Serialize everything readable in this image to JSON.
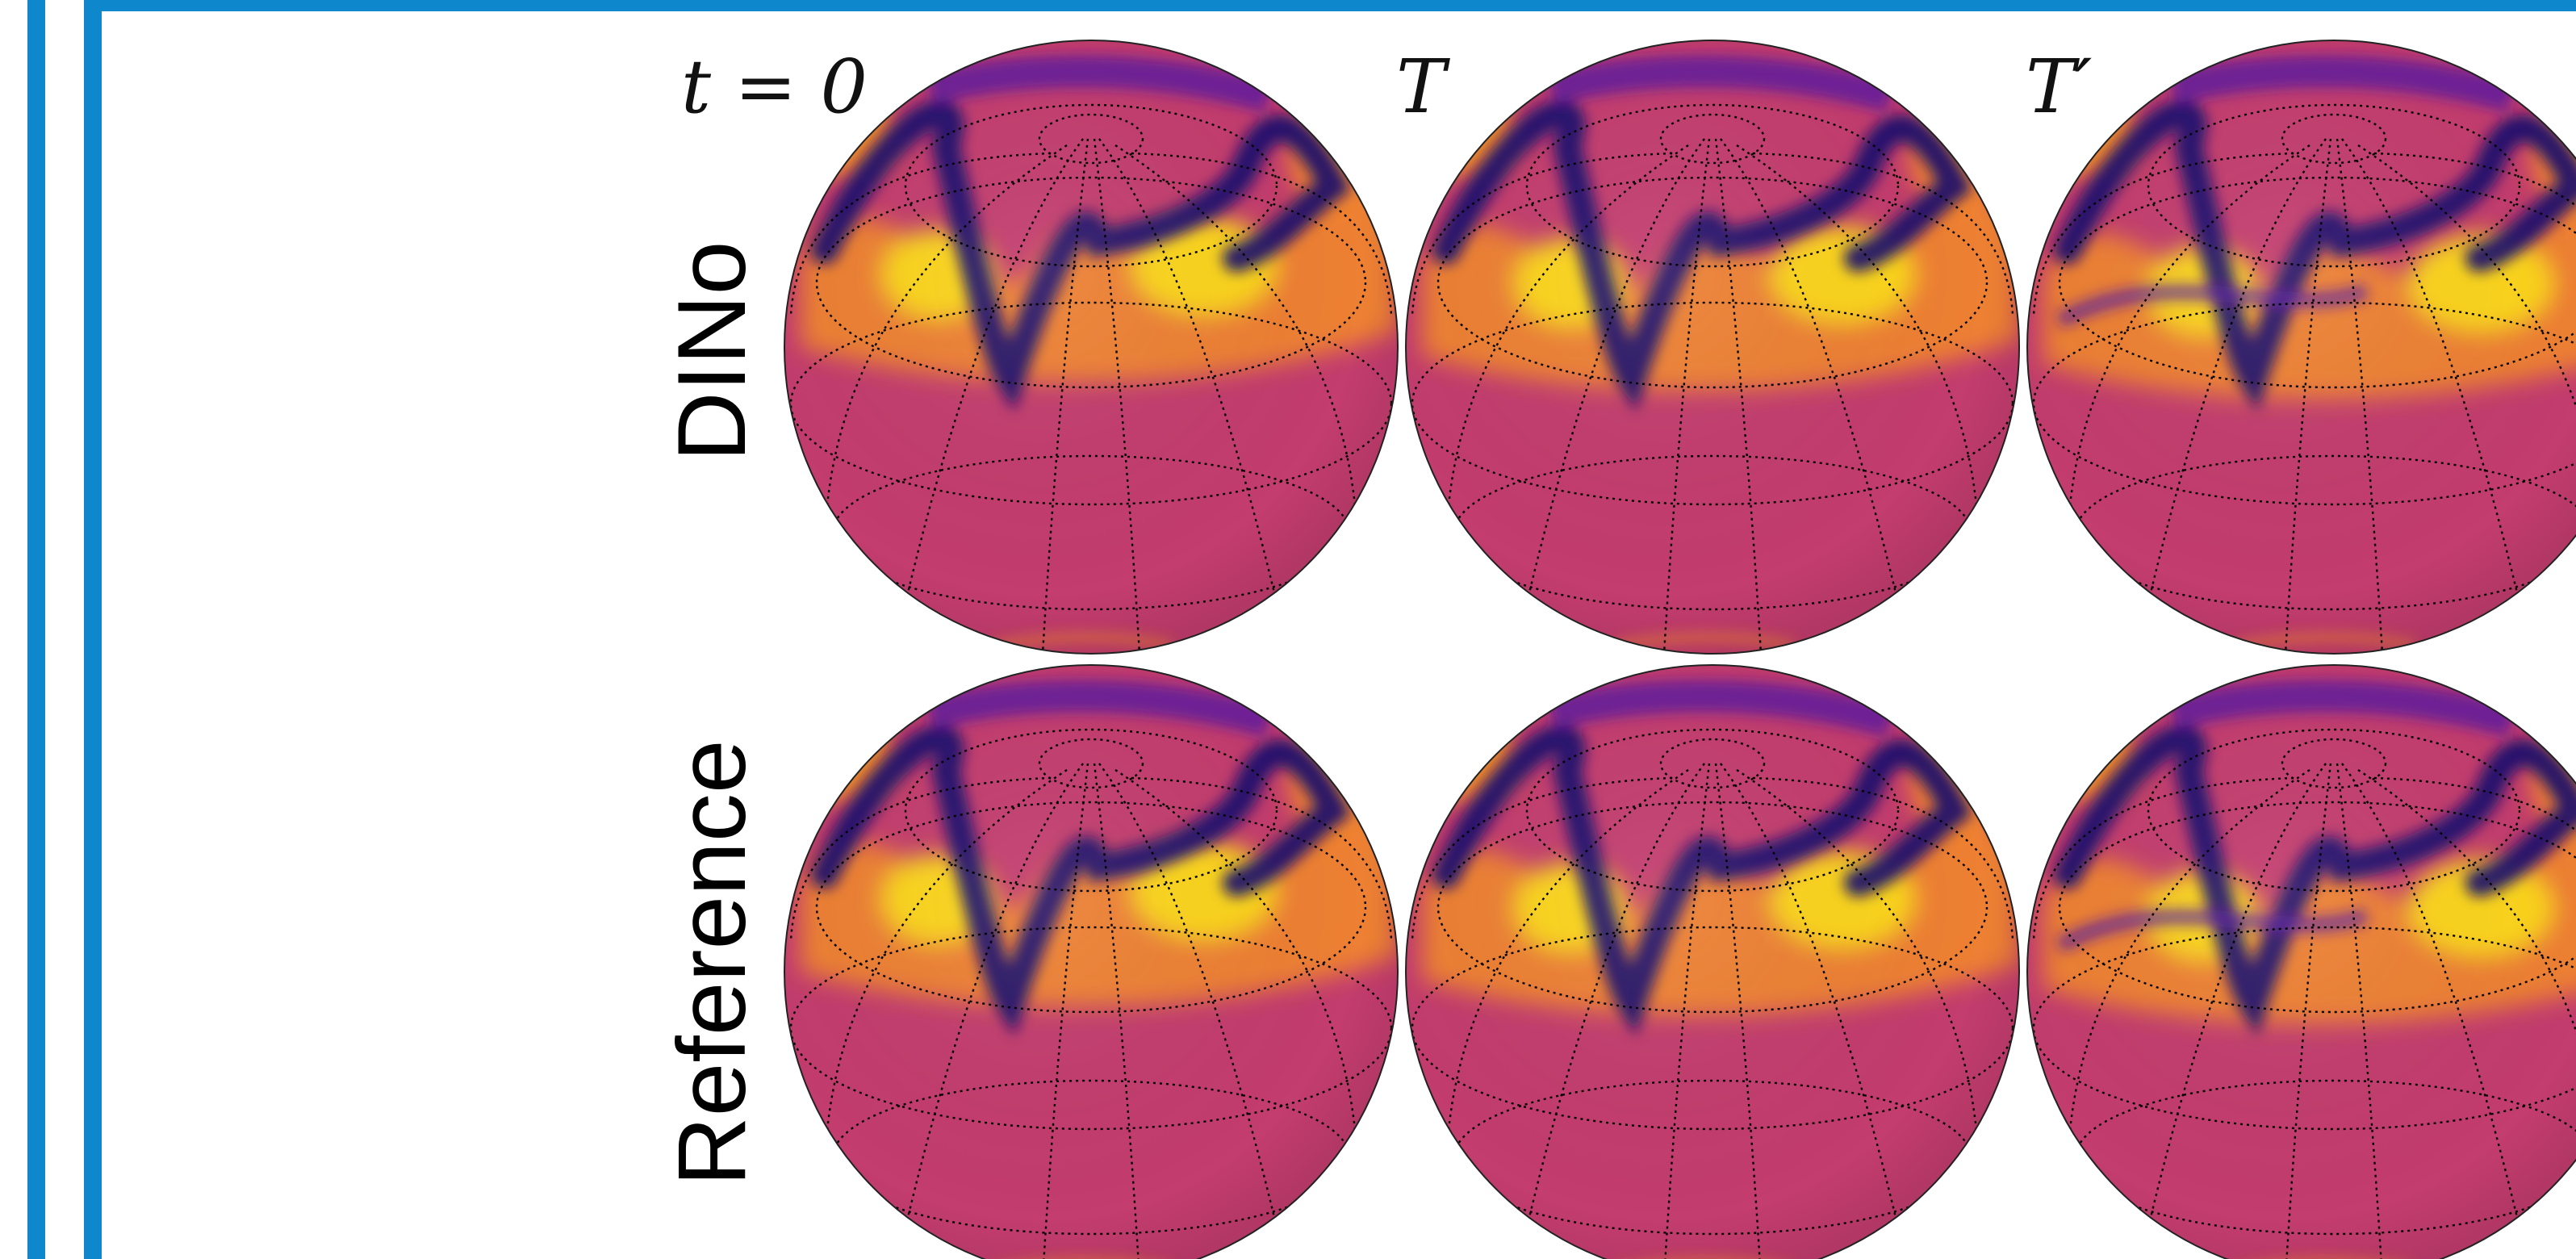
{
  "figure": {
    "column_labels": [
      "t = 0",
      "T",
      "T′"
    ],
    "row_labels": [
      "DINo",
      "Reference"
    ]
  },
  "colors": {
    "frame_blue": "#0f87cc",
    "cmap_dark": "#1a0a6e",
    "cmap_purple": "#5a1aa0",
    "cmap_magenta": "#c33d6e",
    "cmap_orange": "#f2872d",
    "cmap_yellow": "#fbd41e"
  },
  "colormap": "plasma"
}
